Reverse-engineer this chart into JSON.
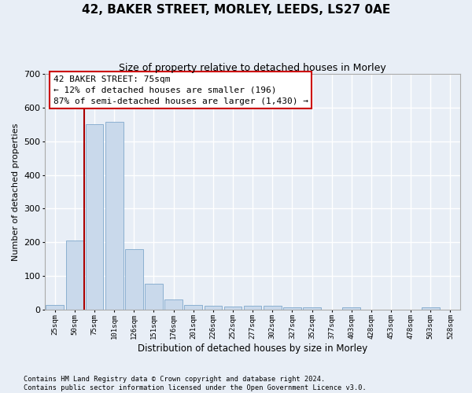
{
  "title": "42, BAKER STREET, MORLEY, LEEDS, LS27 0AE",
  "subtitle": "Size of property relative to detached houses in Morley",
  "xlabel": "Distribution of detached houses by size in Morley",
  "ylabel": "Number of detached properties",
  "footer_line1": "Contains HM Land Registry data © Crown copyright and database right 2024.",
  "footer_line2": "Contains public sector information licensed under the Open Government Licence v3.0.",
  "bar_color": "#c9d9eb",
  "bar_edge_color": "#7fa8cc",
  "vline_color": "#aa0000",
  "vline_index": 1.5,
  "annotation_text": "42 BAKER STREET: 75sqm\n← 12% of detached houses are smaller (196)\n87% of semi-detached houses are larger (1,430) →",
  "annotation_box_edgecolor": "#cc0000",
  "categories": [
    "25sqm",
    "50sqm",
    "75sqm",
    "101sqm",
    "126sqm",
    "151sqm",
    "176sqm",
    "201sqm",
    "226sqm",
    "252sqm",
    "277sqm",
    "302sqm",
    "327sqm",
    "352sqm",
    "377sqm",
    "403sqm",
    "428sqm",
    "453sqm",
    "478sqm",
    "503sqm",
    "528sqm"
  ],
  "values": [
    13,
    205,
    550,
    557,
    178,
    77,
    29,
    13,
    11,
    8,
    10,
    10,
    7,
    5,
    0,
    5,
    0,
    0,
    0,
    5,
    0
  ],
  "ylim": [
    0,
    700
  ],
  "yticks": [
    0,
    100,
    200,
    300,
    400,
    500,
    600,
    700
  ],
  "bg_color": "#e8eef6",
  "grid_color": "#ffffff",
  "spine_color": "#aaaaaa"
}
